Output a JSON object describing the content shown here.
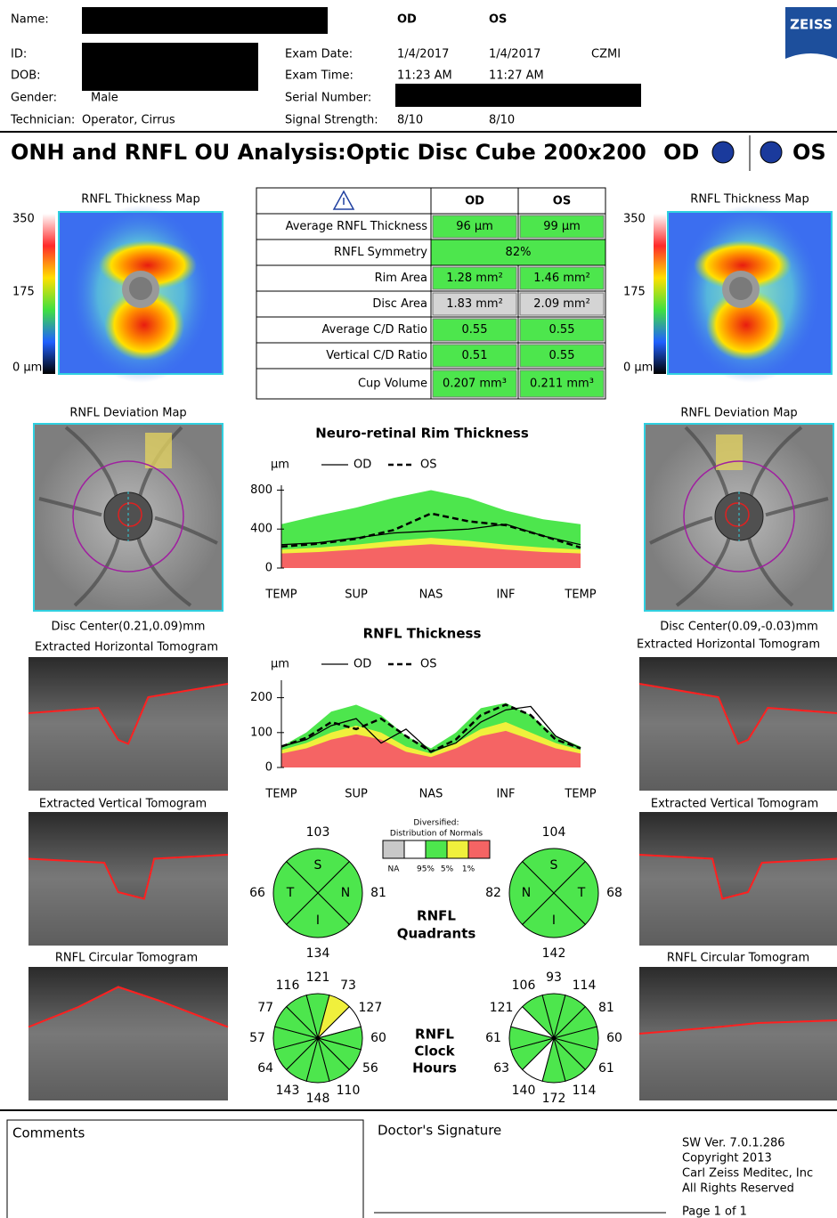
{
  "header": {
    "name_label": "Name:",
    "id_label": "ID:",
    "dob_label": "DOB:",
    "gender_label": "Gender:",
    "gender": "Male",
    "technician_label": "Technician:",
    "technician": "Operator, Cirrus",
    "col_od": "OD",
    "col_os": "OS",
    "exam_date_label": "Exam Date:",
    "exam_date_od": "1/4/2017",
    "exam_date_os": "1/4/2017",
    "site": "CZMI",
    "exam_time_label": "Exam Time:",
    "exam_time_od": "11:23 AM",
    "exam_time_os": "11:27 AM",
    "serial_label": "Serial Number:",
    "signal_label": "Signal Strength:",
    "signal_od": "8/10",
    "signal_os": "8/10",
    "logo": "ZEISS"
  },
  "title": {
    "text": "ONH and RNFL OU Analysis:Optic Disc Cube 200x200",
    "od": "OD",
    "os": "OS",
    "eye_color": "#1a3a9c"
  },
  "thickness_maps": {
    "label": "RNFL Thickness Map",
    "scale": [
      "350",
      "175",
      "0 µm"
    ]
  },
  "table": {
    "header": [
      "OD",
      "OS"
    ],
    "rows": [
      {
        "label": "Average RNFL Thickness",
        "cells": [
          "96 µm",
          "99 µm"
        ],
        "colors": [
          "#4de64d",
          "#4de64d"
        ]
      },
      {
        "label": "RNFL Symmetry",
        "cells": [
          "82%"
        ],
        "colors": [
          "#4de64d"
        ]
      },
      {
        "label": "Rim Area",
        "cells": [
          "1.28 mm²",
          "1.46 mm²"
        ],
        "colors": [
          "#4de64d",
          "#4de64d"
        ]
      },
      {
        "label": "Disc Area",
        "cells": [
          "1.83 mm²",
          "2.09 mm²"
        ],
        "colors": [
          "#d4d4d4",
          "#d4d4d4"
        ]
      },
      {
        "label": "Average C/D Ratio",
        "cells": [
          "0.55",
          "0.55"
        ],
        "colors": [
          "#4de64d",
          "#4de64d"
        ]
      },
      {
        "label": "Vertical C/D Ratio",
        "cells": [
          "0.51",
          "0.55"
        ],
        "colors": [
          "#4de64d",
          "#4de64d"
        ]
      },
      {
        "label": "Cup Volume",
        "cells": [
          "0.207 mm³",
          "0.211 mm³"
        ],
        "colors": [
          "#4de64d",
          "#4de64d"
        ]
      }
    ]
  },
  "deviation_maps": {
    "label": "RNFL Deviation Map",
    "od_center": "Disc Center(0.21,0.09)mm",
    "os_center": "Disc Center(0.09,-0.03)mm"
  },
  "tomograms": {
    "horizontal": "Extracted Horizontal Tomogram",
    "vertical": "Extracted Vertical Tomogram",
    "circular": "RNFL Circular Tomogram"
  },
  "rim_chart": {
    "type": "line",
    "title": "Neuro-retinal Rim Thickness",
    "y_unit": "µm",
    "categories": [
      "TEMP",
      null,
      "SUP",
      null,
      "NAS",
      null,
      "INF",
      null,
      "TEMP"
    ],
    "ylim": [
      0,
      850
    ],
    "yticks": [
      0,
      400,
      800
    ],
    "bands": [
      {
        "color": "#4de64d",
        "values": [
          450,
          540,
          620,
          720,
          800,
          720,
          590,
          500,
          450
        ]
      },
      {
        "color": "#f0f03c",
        "values": [
          190,
          210,
          240,
          280,
          310,
          280,
          240,
          210,
          190
        ]
      },
      {
        "color": "#f56464",
        "values": [
          150,
          165,
          190,
          220,
          245,
          220,
          190,
          165,
          150
        ]
      }
    ],
    "series": [
      {
        "name": "OD",
        "color": "#000000",
        "dash": false,
        "values": [
          240,
          260,
          310,
          360,
          380,
          400,
          450,
          330,
          240
        ]
      },
      {
        "name": "OS",
        "color": "#000000",
        "dash": true,
        "values": [
          220,
          250,
          300,
          390,
          560,
          480,
          440,
          330,
          210
        ]
      }
    ]
  },
  "rnfl_chart": {
    "type": "line",
    "title": "RNFL Thickness",
    "y_unit": "µm",
    "categories": [
      "TEMP",
      null,
      null,
      "SUP",
      null,
      null,
      "NAS",
      null,
      null,
      "INF",
      null,
      null,
      "TEMP"
    ],
    "ylim": [
      0,
      250
    ],
    "yticks": [
      0,
      100,
      200
    ],
    "bands": [
      {
        "color": "#4de64d",
        "values": [
          60,
          100,
          160,
          180,
          150,
          90,
          55,
          100,
          170,
          185,
          150,
          90,
          60
        ]
      },
      {
        "color": "#f0f03c",
        "values": [
          50,
          70,
          100,
          120,
          100,
          60,
          40,
          70,
          110,
          130,
          100,
          70,
          50
        ]
      },
      {
        "color": "#f56464",
        "values": [
          40,
          55,
          80,
          95,
          80,
          45,
          30,
          55,
          90,
          105,
          80,
          55,
          40
        ]
      }
    ],
    "series": [
      {
        "name": "OD",
        "color": "#000000",
        "dash": false,
        "values": [
          60,
          80,
          120,
          140,
          70,
          110,
          45,
          70,
          130,
          165,
          175,
          90,
          55
        ]
      },
      {
        "name": "OS",
        "color": "#000000",
        "dash": true,
        "values": [
          60,
          85,
          130,
          110,
          140,
          90,
          45,
          80,
          150,
          180,
          150,
          80,
          55
        ]
      }
    ]
  },
  "normals_legend": {
    "title": [
      "Diversified:",
      "Distribution of Normals"
    ],
    "colors": [
      "#c8c8c8",
      "#ffffff",
      "#4de64d",
      "#f0f03c",
      "#f56464"
    ],
    "labels": [
      "NA",
      "95%",
      "5%",
      "1%"
    ]
  },
  "quadrants": {
    "title": [
      "RNFL",
      "Quadrants"
    ],
    "od": [
      {
        "label": "S",
        "value": 103,
        "color": "#4de64d"
      },
      {
        "label": "N",
        "value": 81,
        "color": "#4de64d"
      },
      {
        "label": "I",
        "value": 134,
        "color": "#4de64d"
      },
      {
        "label": "T",
        "value": 66,
        "color": "#4de64d"
      }
    ],
    "os": [
      {
        "label": "S",
        "value": 104,
        "color": "#4de64d"
      },
      {
        "label": "T",
        "value": 68,
        "color": "#4de64d"
      },
      {
        "label": "I",
        "value": 142,
        "color": "#4de64d"
      },
      {
        "label": "N",
        "value": 82,
        "color": "#4de64d"
      }
    ]
  },
  "clock_hours": {
    "title": [
      "RNFL",
      "Clock",
      "Hours"
    ],
    "od": {
      "values": [
        121,
        73,
        127,
        60,
        56,
        110,
        148,
        143,
        64,
        57,
        77,
        116
      ],
      "colors": [
        "#4de64d",
        "#f0f03c",
        "#ffffff",
        "#4de64d",
        "#4de64d",
        "#4de64d",
        "#4de64d",
        "#4de64d",
        "#4de64d",
        "#4de64d",
        "#4de64d",
        "#4de64d"
      ]
    },
    "os": {
      "values": [
        93,
        114,
        81,
        60,
        61,
        114,
        172,
        140,
        63,
        61,
        121,
        106
      ],
      "colors": [
        "#4de64d",
        "#4de64d",
        "#4de64d",
        "#4de64d",
        "#4de64d",
        "#4de64d",
        "#4de64d",
        "#ffffff",
        "#4de64d",
        "#4de64d",
        "#ffffff",
        "#4de64d"
      ]
    }
  },
  "footer": {
    "comments": "Comments",
    "signature": "Doctor's Signature",
    "info": [
      "SW Ver. 7.0.1.286",
      "Copyright 2013",
      "Carl Zeiss Meditec, Inc",
      "All Rights Reserved"
    ],
    "page": "Page 1 of 1"
  }
}
